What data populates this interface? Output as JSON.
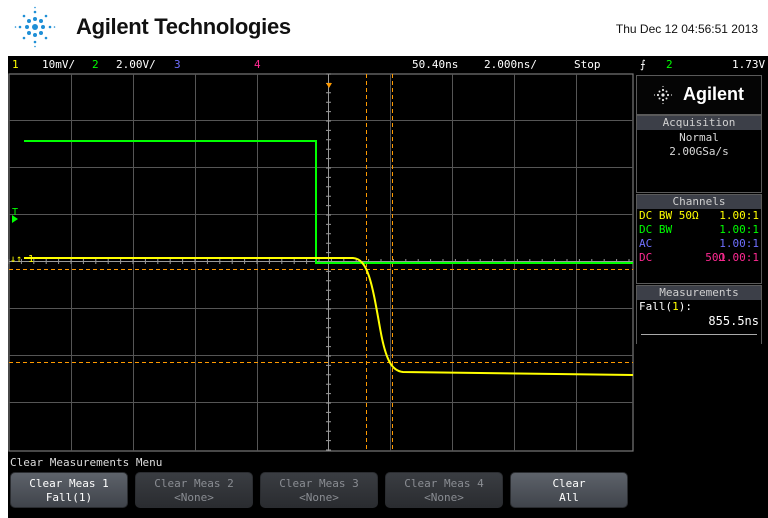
{
  "header": {
    "brand": "Agilent Technologies",
    "timestamp": "Thu Dec 12 04:56:51 2013"
  },
  "status": {
    "ch1_num": "1",
    "ch1_scale": "10mV/",
    "ch2_num": "2",
    "ch2_scale": "2.00V/",
    "ch3_num": "3",
    "ch4_num": "4",
    "time_delay": "50.40ns",
    "time_scale": "2.000ns/",
    "run_state": "Stop",
    "trigger_symbol": "⨍",
    "trigger_source": "2",
    "trigger_level": "1.73V"
  },
  "panel": {
    "logo": "Agilent",
    "acquisition": {
      "title": "Acquisition",
      "mode": "Normal",
      "rate": "2.00GSa/s"
    },
    "channels": {
      "title": "Channels",
      "rows": [
        {
          "label": "DC BW 50Ω",
          "probe": "1.00:1",
          "color": "#ffff00"
        },
        {
          "label": "DC BW",
          "probe": "1.00:1",
          "color": "#00ff00"
        },
        {
          "label": "AC",
          "probe": "1.00:1",
          "color": "#6f6fff"
        },
        {
          "label": "DC        50Ω",
          "probe": "1.00:1",
          "color": "#ff2a92"
        }
      ]
    },
    "measurements": {
      "title": "Measurements",
      "name_prefix": "Fall(",
      "name_channel": "1",
      "name_suffix": "):",
      "value": "855.5ns"
    }
  },
  "markers": {
    "ch1": "1",
    "trigger": "T"
  },
  "menu": {
    "title": "Clear Measurements Menu",
    "softkeys": [
      {
        "label": "Clear Meas 1",
        "sub": "Fall(1)",
        "enabled": true
      },
      {
        "label": "Clear Meas 2",
        "sub": "<None>",
        "enabled": false
      },
      {
        "label": "Clear Meas 3",
        "sub": "<None>",
        "enabled": false
      },
      {
        "label": "Clear Meas 4",
        "sub": "<None>",
        "enabled": false
      },
      {
        "label": "Clear",
        "sub": "All",
        "enabled": true
      }
    ]
  },
  "colors": {
    "ch1": "#ffff00",
    "ch2": "#00ff00",
    "ch3": "#6f6fff",
    "ch4": "#ff2a92",
    "cursor": "#ff9a00"
  }
}
